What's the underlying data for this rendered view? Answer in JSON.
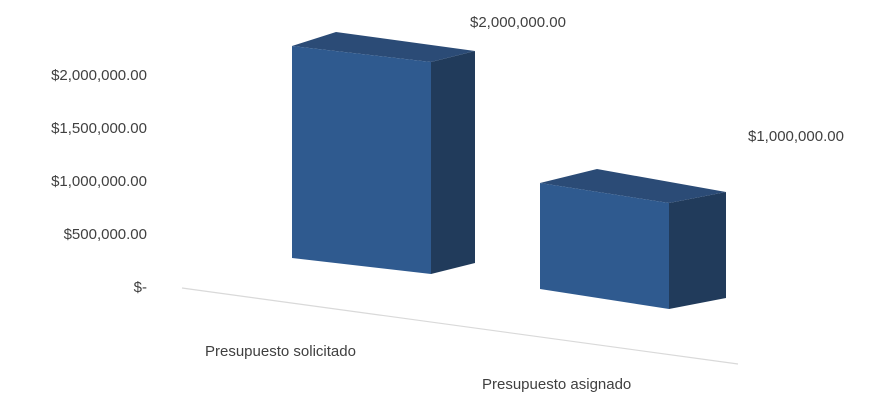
{
  "chart_data": {
    "type": "bar",
    "categories": [
      "Presupuesto solicitado",
      "Presupuesto asignado"
    ],
    "values": [
      2000000,
      1000000
    ],
    "data_labels": [
      "$2,000,000.00",
      "$1,000,000.00"
    ],
    "y_ticks": [
      {
        "value": 0,
        "label": "$-"
      },
      {
        "value": 500000,
        "label": "$500,000.00"
      },
      {
        "value": 1000000,
        "label": "$1,000,000.00"
      },
      {
        "value": 1500000,
        "label": "$1,500,000.00"
      },
      {
        "value": 2000000,
        "label": "$2,000,000.00"
      }
    ],
    "ylim": [
      0,
      2000000
    ],
    "title": "",
    "xlabel": "",
    "ylabel": "",
    "grid": false,
    "legend": "none",
    "bar_3d": true,
    "colors": {
      "front": "#2f5a8f",
      "side": "#213b5b",
      "top": "#2b4b76",
      "axis": "#d9d9d9",
      "text": "#404040"
    }
  }
}
